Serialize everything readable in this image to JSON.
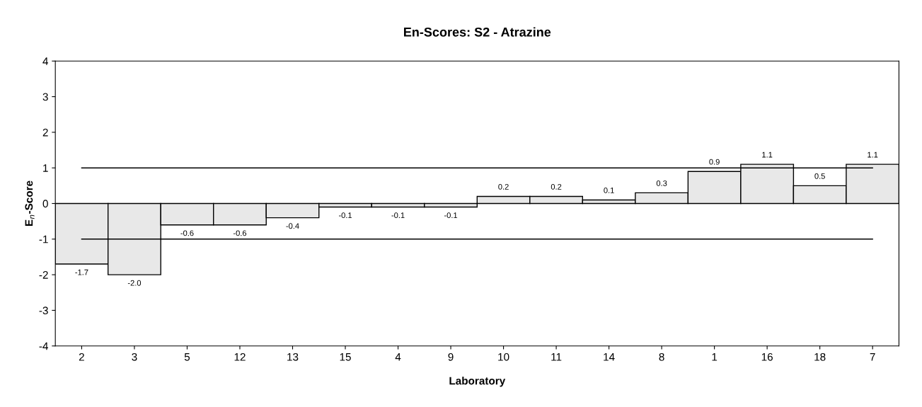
{
  "chart_data": {
    "type": "bar",
    "title": "En-Scores: S2 - Atrazine",
    "xlabel": "Laboratory",
    "ylabel": "E$_{n}$-Score",
    "categories": [
      "2",
      "3",
      "5",
      "12",
      "13",
      "15",
      "4",
      "9",
      "10",
      "11",
      "14",
      "8",
      "1",
      "16",
      "18",
      "7"
    ],
    "values": [
      -1.7,
      -2.0,
      -0.6,
      -0.6,
      -0.4,
      -0.1,
      -0.1,
      -0.1,
      0.2,
      0.2,
      0.1,
      0.3,
      0.9,
      1.1,
      0.5,
      1.1
    ],
    "value_labels": [
      "-1.7",
      "-2.0",
      "-0.6",
      "-0.6",
      "-0.4",
      "-0.1",
      "-0.1",
      "-0.1",
      "0.2",
      "0.2",
      "0.1",
      "0.3",
      "0.9",
      "1.1",
      "0.5",
      "1.1"
    ],
    "color": "#e8e8e8",
    "ylim": [
      -4,
      4
    ],
    "yticks": [
      -4,
      -3,
      -2,
      -1,
      0,
      1,
      2,
      3,
      4
    ],
    "grid": false,
    "legend": false,
    "ref_lines": [
      {
        "axis": "y",
        "value": 1,
        "color": "#000000"
      },
      {
        "axis": "y",
        "value": -1,
        "color": "#000000"
      }
    ]
  }
}
